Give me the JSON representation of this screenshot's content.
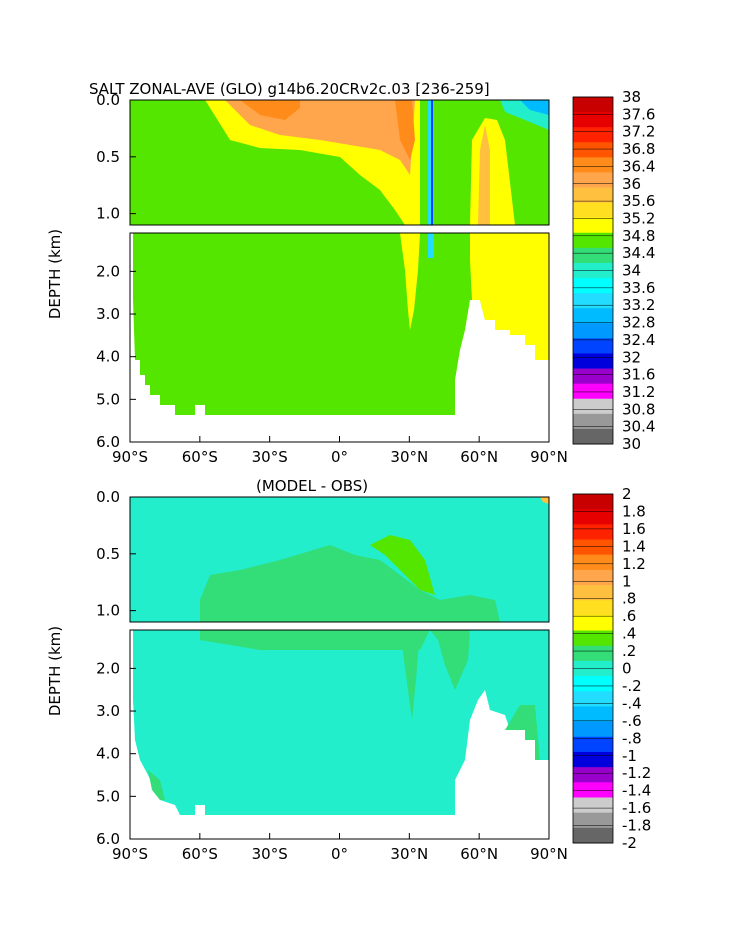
{
  "chart_data": [
    {
      "type": "heatmap",
      "title": "SALT ZONAL-AVE (GLO) g14b6.20CRv2c.03 [236-259]",
      "ylabel": "DEPTH (km)",
      "x_ticks": [
        "90°S",
        "60°S",
        "30°S",
        "0°",
        "30°N",
        "60°N",
        "90°N"
      ],
      "xlim": [
        -90,
        90
      ],
      "y_ticks_upper": [
        "0.0",
        "0.5",
        "1.0"
      ],
      "y_ticks_lower": [
        "2.0",
        "3.0",
        "4.0",
        "5.0",
        "6.0"
      ],
      "ylim_upper": [
        0,
        1.1
      ],
      "ylim_lower": [
        1.1,
        6.0
      ],
      "colorbar_labels": [
        "38",
        "37.6",
        "37.2",
        "36.8",
        "36.4",
        "36",
        "35.6",
        "35.2",
        "34.8",
        "34.4",
        "34",
        "33.6",
        "33.2",
        "32.8",
        "32.4",
        "32",
        "31.6",
        "31.2",
        "30.8",
        "30.4",
        "30"
      ],
      "colorbar_colors": [
        "#c80000",
        "#e60000",
        "#ff2200",
        "#ff5500",
        "#ff8c1a",
        "#ffa64d",
        "#ffbf3f",
        "#ffdf1f",
        "#ffff00",
        "#55e600",
        "#33dd77",
        "#22eecc",
        "#00ffff",
        "#22ddff",
        "#00bbff",
        "#0099ff",
        "#0044ff",
        "#0000dd",
        "#9900cc",
        "#ff00ff",
        "#cccccc",
        "#999999",
        "#666666"
      ]
    },
    {
      "type": "heatmap",
      "title": "(MODEL - OBS)",
      "ylabel": "DEPTH (km)",
      "x_ticks": [
        "90°S",
        "60°S",
        "30°S",
        "0°",
        "30°N",
        "60°N",
        "90°N"
      ],
      "xlim": [
        -90,
        90
      ],
      "y_ticks_upper": [
        "0.0",
        "0.5",
        "1.0"
      ],
      "y_ticks_lower": [
        "2.0",
        "3.0",
        "4.0",
        "5.0",
        "6.0"
      ],
      "ylim_upper": [
        0,
        1.1
      ],
      "ylim_lower": [
        1.1,
        6.0
      ],
      "colorbar_labels": [
        "2",
        "1.8",
        "1.6",
        "1.4",
        "1.2",
        "1",
        ".8",
        ".6",
        ".4",
        ".2",
        "0",
        "-.2",
        "-.4",
        "-.6",
        "-.8",
        "-1",
        "-1.2",
        "-1.4",
        "-1.6",
        "-1.8",
        "-2"
      ],
      "colorbar_colors": [
        "#c80000",
        "#e60000",
        "#ff2200",
        "#ff5500",
        "#ff8c1a",
        "#ffa64d",
        "#ffbf3f",
        "#ffdf1f",
        "#ffff00",
        "#55e600",
        "#33dd77",
        "#22eecc",
        "#00ffff",
        "#22ddff",
        "#00bbff",
        "#0099ff",
        "#0044ff",
        "#0000dd",
        "#9900cc",
        "#ff00ff",
        "#cccccc",
        "#999999",
        "#666666"
      ]
    }
  ]
}
